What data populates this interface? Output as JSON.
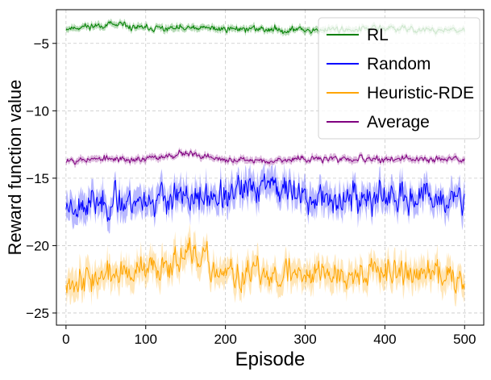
{
  "chart_data": {
    "type": "line",
    "title": "",
    "xlabel": "Episode",
    "ylabel": "Reward function value",
    "xlim": [
      -12,
      524
    ],
    "ylim": [
      -25.9,
      -2.5
    ],
    "x_ticks": [
      0,
      100,
      200,
      300,
      400,
      500
    ],
    "y_ticks": [
      -5,
      -10,
      -15,
      -20,
      -25
    ],
    "x_tick_labels": [
      "0",
      "100",
      "200",
      "300",
      "400",
      "500"
    ],
    "y_tick_labels": [
      "−5",
      "−10",
      "−15",
      "−20",
      "−25"
    ],
    "grid": true,
    "legend_position": "top-right",
    "episodes": 500,
    "series": [
      {
        "name": "RL",
        "color": "#008000",
        "mean": -3.9,
        "spread": 0.18,
        "band": 0.25,
        "seed": 11,
        "key_points": [
          [
            0,
            -3.9
          ],
          [
            50,
            -3.6
          ],
          [
            100,
            -3.9
          ],
          [
            200,
            -3.9
          ],
          [
            300,
            -4.0
          ],
          [
            400,
            -3.9
          ],
          [
            500,
            -4.1
          ]
        ]
      },
      {
        "name": "Random",
        "color": "#0000ff",
        "mean": -16.5,
        "spread": 0.8,
        "band": 1.0,
        "seed": 23,
        "key_points": [
          [
            0,
            -17.0
          ],
          [
            100,
            -16.6
          ],
          [
            200,
            -16.5
          ],
          [
            250,
            -15.2
          ],
          [
            300,
            -16.5
          ],
          [
            400,
            -16.5
          ],
          [
            500,
            -16.8
          ]
        ]
      },
      {
        "name": "Heuristic-RDE",
        "color": "#ffa500",
        "mean": -22.0,
        "spread": 0.75,
        "band": 1.0,
        "seed": 37,
        "key_points": [
          [
            0,
            -22.5
          ],
          [
            100,
            -22.0
          ],
          [
            150,
            -20.5
          ],
          [
            200,
            -22.3
          ],
          [
            300,
            -22.0
          ],
          [
            400,
            -22.0
          ],
          [
            500,
            -22.2
          ]
        ]
      },
      {
        "name": "Average",
        "color": "#800080",
        "mean": -13.6,
        "spread": 0.18,
        "band": 0.25,
        "seed": 53,
        "key_points": [
          [
            0,
            -13.6
          ],
          [
            100,
            -13.6
          ],
          [
            150,
            -13.1
          ],
          [
            200,
            -13.7
          ],
          [
            300,
            -13.6
          ],
          [
            400,
            -13.6
          ],
          [
            500,
            -13.6
          ]
        ]
      }
    ]
  }
}
